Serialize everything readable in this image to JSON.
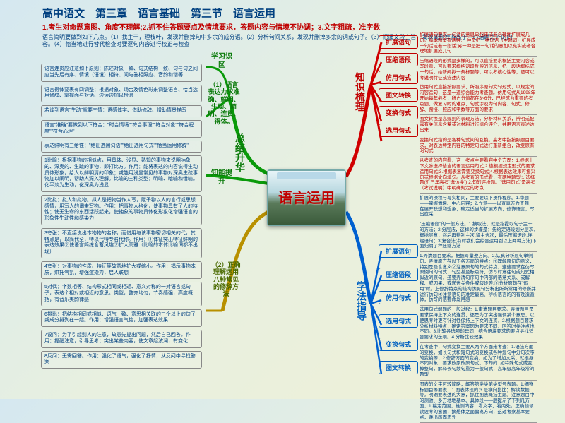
{
  "header": {
    "title": "高中语文　第三章　语言基础　第三节　语言运用",
    "subtitle": "1.考生对命题意图、角度不理解;2.抓不住答题要点及情境要求，答题内容与情境不协调；3.文字粗疏，准字数",
    "desc": "语言简明要做到如下几点。（1）找主干，理枝叶，发现并删掉句中多余的成分语。（2）分析句间关系，发现并删掉多余的词或句子。（3）把握文段主旨，发现或删掉游离于中心话题之外的内容。（4）恰当地进行替代检查时要逐句内容进行校正与检查"
  },
  "center": {
    "text": "语言运用"
  },
  "hubs": {
    "tl": "总结升华",
    "tr": "知识梳理",
    "bl": "（2）正确理解运用八种常见的修辞方法",
    "br": "学法指导"
  },
  "greenLabels": {
    "a": "学习识区",
    "b": "（1）语言表达力求准确、鲜明、生动、简明、连贯、得体。",
    "c": "知能提升"
  },
  "tagsTR": [
    "扩展语句",
    "压缩语段",
    "仿用句式",
    "图文转换",
    "变换句式",
    "选用句式"
  ],
  "tagsBR": [
    "扩展语句",
    "压缩语段",
    "仿用句式",
    "选用句式",
    "变换句式",
    "图文转换"
  ],
  "leftBlocks": [
    "语言连贯应注意如下原则：陈述对象一致、句式结构一致、句与句之间应当先后有序、情境（语境）相符、问与答相照应、音韵和谐等",
    "语言得体要表有四调整：根据对象、场合及情色彩来调整语言、恰当选用修辞、掌握面与对话、边读边加以检验",
    "若谈到语言\"生动\"就要三情：语感体字、借助修辞、增助情景描写",
    "语言\"准确\"要做到以下符合：\"时合情境\"\"符合事理\"\"符合对象\"\"符合程度\"\"符合心理\"",
    "表达鲜明有三给性：\"给出选用词语\"\"给出选用句式\"\"恰当运用修辞\"",
    "1比喻：根据事物的相似点，用具体、浅显、熟知的事物来说明抽象的、深奥的、生疏的事物，即打比方。作用：能将表达的内容说得生动具体形象，给人以鲜明清的印象；或能用浅显常见的事物对深奥生疏事物加以阐明，帮助人深入理解。比喻的三种类型：明喻、暗喻和借喻。化平淡为生动，化深奥为浅显",
    "2比拟：拟人和拟物。拟人是把物当作人写，赋予物以人的言行或思想感情，用写人的词来写物。作用：把事物人格化，使事物具有了人的特性；使无生命的东西活跃起来，使抽象的事物具体化形象化增强语言的形象性生动性和感染力",
    "3夸张：不直接说出本物物的名称，而借用与该事物密切相关的代，其特点是，以简代全，特以代特专名代称。作用：①体征突出特征鲜明的表达效果②使语言简练含蓄风趣③扩大高雅（比喻的本体比喻词都不出现）",
    "4夸张：对事物的性质、特征等故意地扩大或缩小。作用：揭示事物本质，烘托气氛，增强渲染力，启人联想",
    "5对偶：字数相等、结构形式相同或相近、意义对称的一对语言或句子，表达个相对或相近的意思。类型，整齐均匀，节奏感强，高度概括，有音乐美韵律感",
    "6排比：把结构相同或相似、语气一致、意思相关联的三个以上的句子或成分排列在一起。作用：增强语言气势，加强表达效果",
    "7设问：为了引起别人的注意，故意先提出问题，然后自己回答。作用：提醒注意，引导思考；突出某些内容，使文章起波澜，有变化",
    "8反问：无需回答。作用：强化了语气，强化了抒情，从反问中寻找答案"
  ],
  "rightBlocks": [
    "扩展语句要求一句话的意思串起来或者合理地扩展成几句。基本题型有两种:一种是把一组词语（主题词）扩展成一句话或者一段话;另一种是把一句话的意加以充实或者合理地扩展成几句",
    "压缩语段的形式是多样的，可以直接要求概括主要内容或写段意，可以要求概括语段反映的信息、把一段话概括成一句话、给新闻拟一条标题等，可以考核心性等，还可以考说明特征或描述内容",
    "仿用句式直接按照要求，所照序原句文句形式，以规定的内容造句，这是一道综合能力考查题。仿用句式从1998年开始每年必考，所占分值都在3~6分，已经成为重要的考点题、做复习时的难点，句式涉及为句内容、句式、修辞、衔接、照应和字数等方面的要求",
    "图文转换是高规则的表现方法，分析材料关系，辨明或披露有关信息含蓄或对材料进行综合评介，并用语言表述达出来",
    "变换句式指的是各种句式间的互换。高考中指按照题目要求，对表达特定内容的特定句式进行重新组合，改变原有的句式",
    "从考查的内容看，这一考点主要看容中个方面：1.根据上下文脉选择恰当的语言运用句式;2.连根据规定形式的要求造用句式;3.根据表意需要变换句式;4.根据表达效果可排采句或根据文向填句。从考查的形式看，有两种题型:1.选择题(近三年高考\"选仿换\");2.句的评析题。\"选用句式\"是高考（考试说明）中明确规定的考点",
    "扩展的操程与写实相同，主要要以下操作程序。1.审题——掌握情境、中心内容；2.立意——以查真方为查题，在展开联想和想象，确定适当的扩展方向，修饰语言，写出应采",
    "\"压缩语段\"的一般方法。1.摘取法，就是指提取句子主干的方法；2.分层法，这样的步骤是：先给定语段划分层次,概括层意；然后再辨别主次,留主舍次；最后压缩语段,连缀语句；3.复合法(有时我们会综合运用到以上两种方法)下面归纳了种压缩方法",
    "1.弄清题目要求，把握写量遵方向。2.认真分析原句举例句，弄清原方在以下各方面的特点：①理解原句的意义，特别是隐含意义②注意原句的句式特点，这些要求在仿写原例句的句式、句型甚至标点符，仿写时意往句或句式相似近的原句，还要弄清句序句中内部的语意关系、或解释、或因果、或递进关条件或假设等;③分析原句在\"运用\"时。上修辞特点的结构仿照句分析出所所常用的修所并进行仿句④注意语句的准定最高、辨析语言的的有及造造体，仿写的语要命发用感",
    "选用句式解题的一般过程：1.审清题目要求。弄清题目是要求保持上下文的连贯，还是为了突出强调某个意思，以便思考时更有针对性保持上下文的连贯，2.根据题目要求分析材料特点，确定答案因为要求不同，回答时关注点也不同。3.比较各选项的异同，结合语境要求的要点寻找适合要求的选项。4.分析比较效果",
    "在考查中，句式变换主要从两个方面来考查：1.语法方面的变换，如长句式和短句式的变换或各种复句中分句次序的变换等；2.修辞方面的变换，如为了增加文采，就根据不同对象，要求改原改原句式，下句的..如特殊句式或变掉整句，解释长句散句重为一般句式，高年级高年级常的题型",
    "图表的文字可较简略，解答第类类第类型号表题。1.细察标题目等要说，1.图表体现的;3.是横向比比；解读数据等。明确要表述的大意，抓住图表概括主题。注意题目中的测验、多方地地基本、具体段——般提示了下列几方面：1.稿定范围、推测内容、看文字，看内处。正确领领读设考的意图，摘想体之面偏离方向，这过考察基本要点，跳出画面思外"
  ],
  "rightBlockColors": [
    "red",
    "red",
    "red",
    "red",
    "red",
    "red",
    "blue",
    "blue",
    "blue",
    "blue",
    "blue",
    "blue"
  ],
  "colors": {
    "green": "#0a9a0a",
    "red": "#d00000",
    "blue": "#0060d0",
    "orange": "#b89000"
  }
}
